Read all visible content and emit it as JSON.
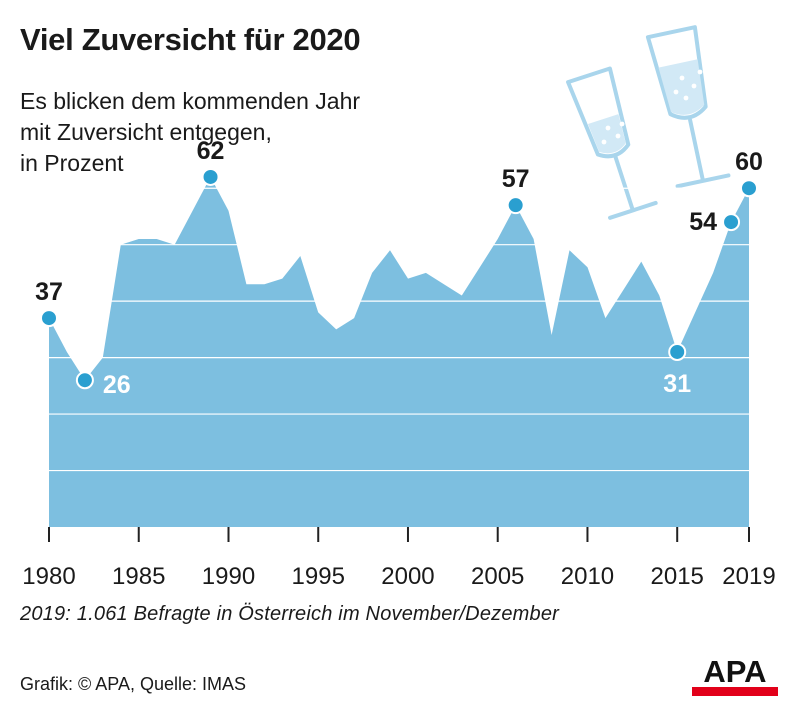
{
  "header": {
    "title": "Viel Zuversicht für 2020",
    "subtitle_lines": [
      "Es blicken dem kommenden Jahr",
      "mit Zuversicht entgegen,",
      "in Prozent"
    ]
  },
  "footer": {
    "note": "2019: 1.061 Befragte in Österreich im November/Dezember",
    "credit": "Grafik: © APA, Quelle: IMAS",
    "logo_text": "APA"
  },
  "colors": {
    "area": "#7dbfe0",
    "marker": "#2a9fd0",
    "grid": "#ffffff",
    "text": "#1a1a1a",
    "logo_red": "#e2001a"
  },
  "decoration": "champagne-glasses-icon",
  "chart_data": {
    "type": "area",
    "xlim": [
      1980,
      2019
    ],
    "ylim": [
      0,
      65
    ],
    "grid": true,
    "x_ticks": [
      1980,
      1985,
      1990,
      1995,
      2000,
      2005,
      2010,
      2015,
      2019
    ],
    "points": [
      {
        "x": 1980,
        "y": 37
      },
      {
        "x": 1981,
        "y": 31
      },
      {
        "x": 1982,
        "y": 26
      },
      {
        "x": 1983,
        "y": 30
      },
      {
        "x": 1984,
        "y": 50
      },
      {
        "x": 1985,
        "y": 51
      },
      {
        "x": 1986,
        "y": 51
      },
      {
        "x": 1987,
        "y": 50
      },
      {
        "x": 1988,
        "y": 56
      },
      {
        "x": 1989,
        "y": 62
      },
      {
        "x": 1990,
        "y": 56
      },
      {
        "x": 1991,
        "y": 43
      },
      {
        "x": 1992,
        "y": 43
      },
      {
        "x": 1993,
        "y": 44
      },
      {
        "x": 1994,
        "y": 48
      },
      {
        "x": 1995,
        "y": 38
      },
      {
        "x": 1996,
        "y": 35
      },
      {
        "x": 1997,
        "y": 37
      },
      {
        "x": 1998,
        "y": 45
      },
      {
        "x": 1999,
        "y": 49
      },
      {
        "x": 2000,
        "y": 44
      },
      {
        "x": 2001,
        "y": 45
      },
      {
        "x": 2002,
        "y": 43
      },
      {
        "x": 2003,
        "y": 41
      },
      {
        "x": 2004,
        "y": 46
      },
      {
        "x": 2005,
        "y": 51
      },
      {
        "x": 2006,
        "y": 57
      },
      {
        "x": 2007,
        "y": 51
      },
      {
        "x": 2008,
        "y": 34
      },
      {
        "x": 2009,
        "y": 49
      },
      {
        "x": 2010,
        "y": 46
      },
      {
        "x": 2011,
        "y": 37
      },
      {
        "x": 2012,
        "y": 42
      },
      {
        "x": 2013,
        "y": 47
      },
      {
        "x": 2014,
        "y": 41
      },
      {
        "x": 2015,
        "y": 31
      },
      {
        "x": 2016,
        "y": 38
      },
      {
        "x": 2017,
        "y": 45
      },
      {
        "x": 2018,
        "y": 54
      },
      {
        "x": 2019,
        "y": 60
      }
    ],
    "labels": [
      {
        "x": 1980,
        "y": 37,
        "text": "37",
        "placement": "above",
        "style": "dark"
      },
      {
        "x": 1982,
        "y": 26,
        "text": "26",
        "placement": "right",
        "style": "light"
      },
      {
        "x": 1989,
        "y": 62,
        "text": "62",
        "placement": "above",
        "style": "dark"
      },
      {
        "x": 2006,
        "y": 57,
        "text": "57",
        "placement": "above",
        "style": "dark"
      },
      {
        "x": 2015,
        "y": 31,
        "text": "31",
        "placement": "below",
        "style": "light"
      },
      {
        "x": 2018,
        "y": 54,
        "text": "54",
        "placement": "left",
        "style": "dark"
      },
      {
        "x": 2019,
        "y": 60,
        "text": "60",
        "placement": "above",
        "style": "dark"
      }
    ]
  }
}
